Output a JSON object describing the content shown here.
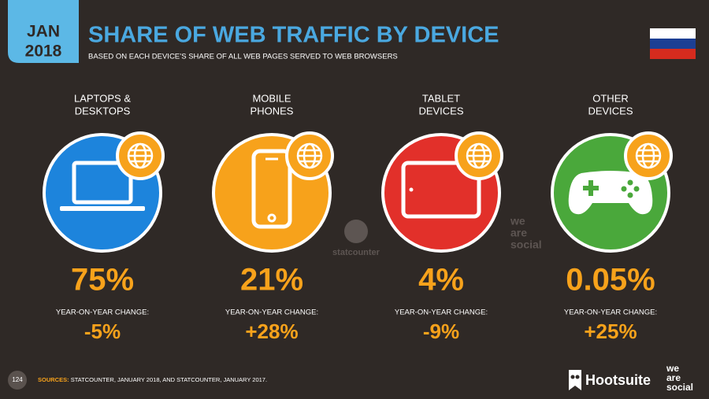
{
  "header": {
    "date": [
      "JAN",
      "2018"
    ],
    "title": "SHARE OF WEB TRAFFIC BY DEVICE",
    "subtitle": "BASED ON EACH DEVICE’S SHARE OF ALL WEB PAGES SERVED TO WEB BROWSERS"
  },
  "devices": [
    {
      "label": [
        "LAPTOPS &",
        "DESKTOPS"
      ],
      "share": "75%",
      "change_label": "YEAR-ON-YEAR CHANGE:",
      "change": "-5%"
    },
    {
      "label": [
        "MOBILE",
        "PHONES"
      ],
      "share": "21%",
      "change_label": "YEAR-ON-YEAR CHANGE:",
      "change": "+28%"
    },
    {
      "label": [
        "TABLET",
        "DEVICES"
      ],
      "share": "4%",
      "change_label": "YEAR-ON-YEAR CHANGE:",
      "change": "-9%"
    },
    {
      "label": [
        "OTHER",
        "DEVICES"
      ],
      "share": "0.05%",
      "change_label": "YEAR-ON-YEAR CHANGE:",
      "change": "+25%"
    }
  ],
  "watermarks": {
    "statcounter": "statcounter",
    "social": [
      "we",
      "are",
      "social"
    ]
  },
  "footer": {
    "page": "124",
    "sources_label": "SOURCES:",
    "sources": "STATCOUNTER, JANUARY 2018, AND STATCOUNTER, JANUARY 2017.",
    "brand": "Hootsuite",
    "partner": [
      "we",
      "are",
      "social"
    ]
  }
}
